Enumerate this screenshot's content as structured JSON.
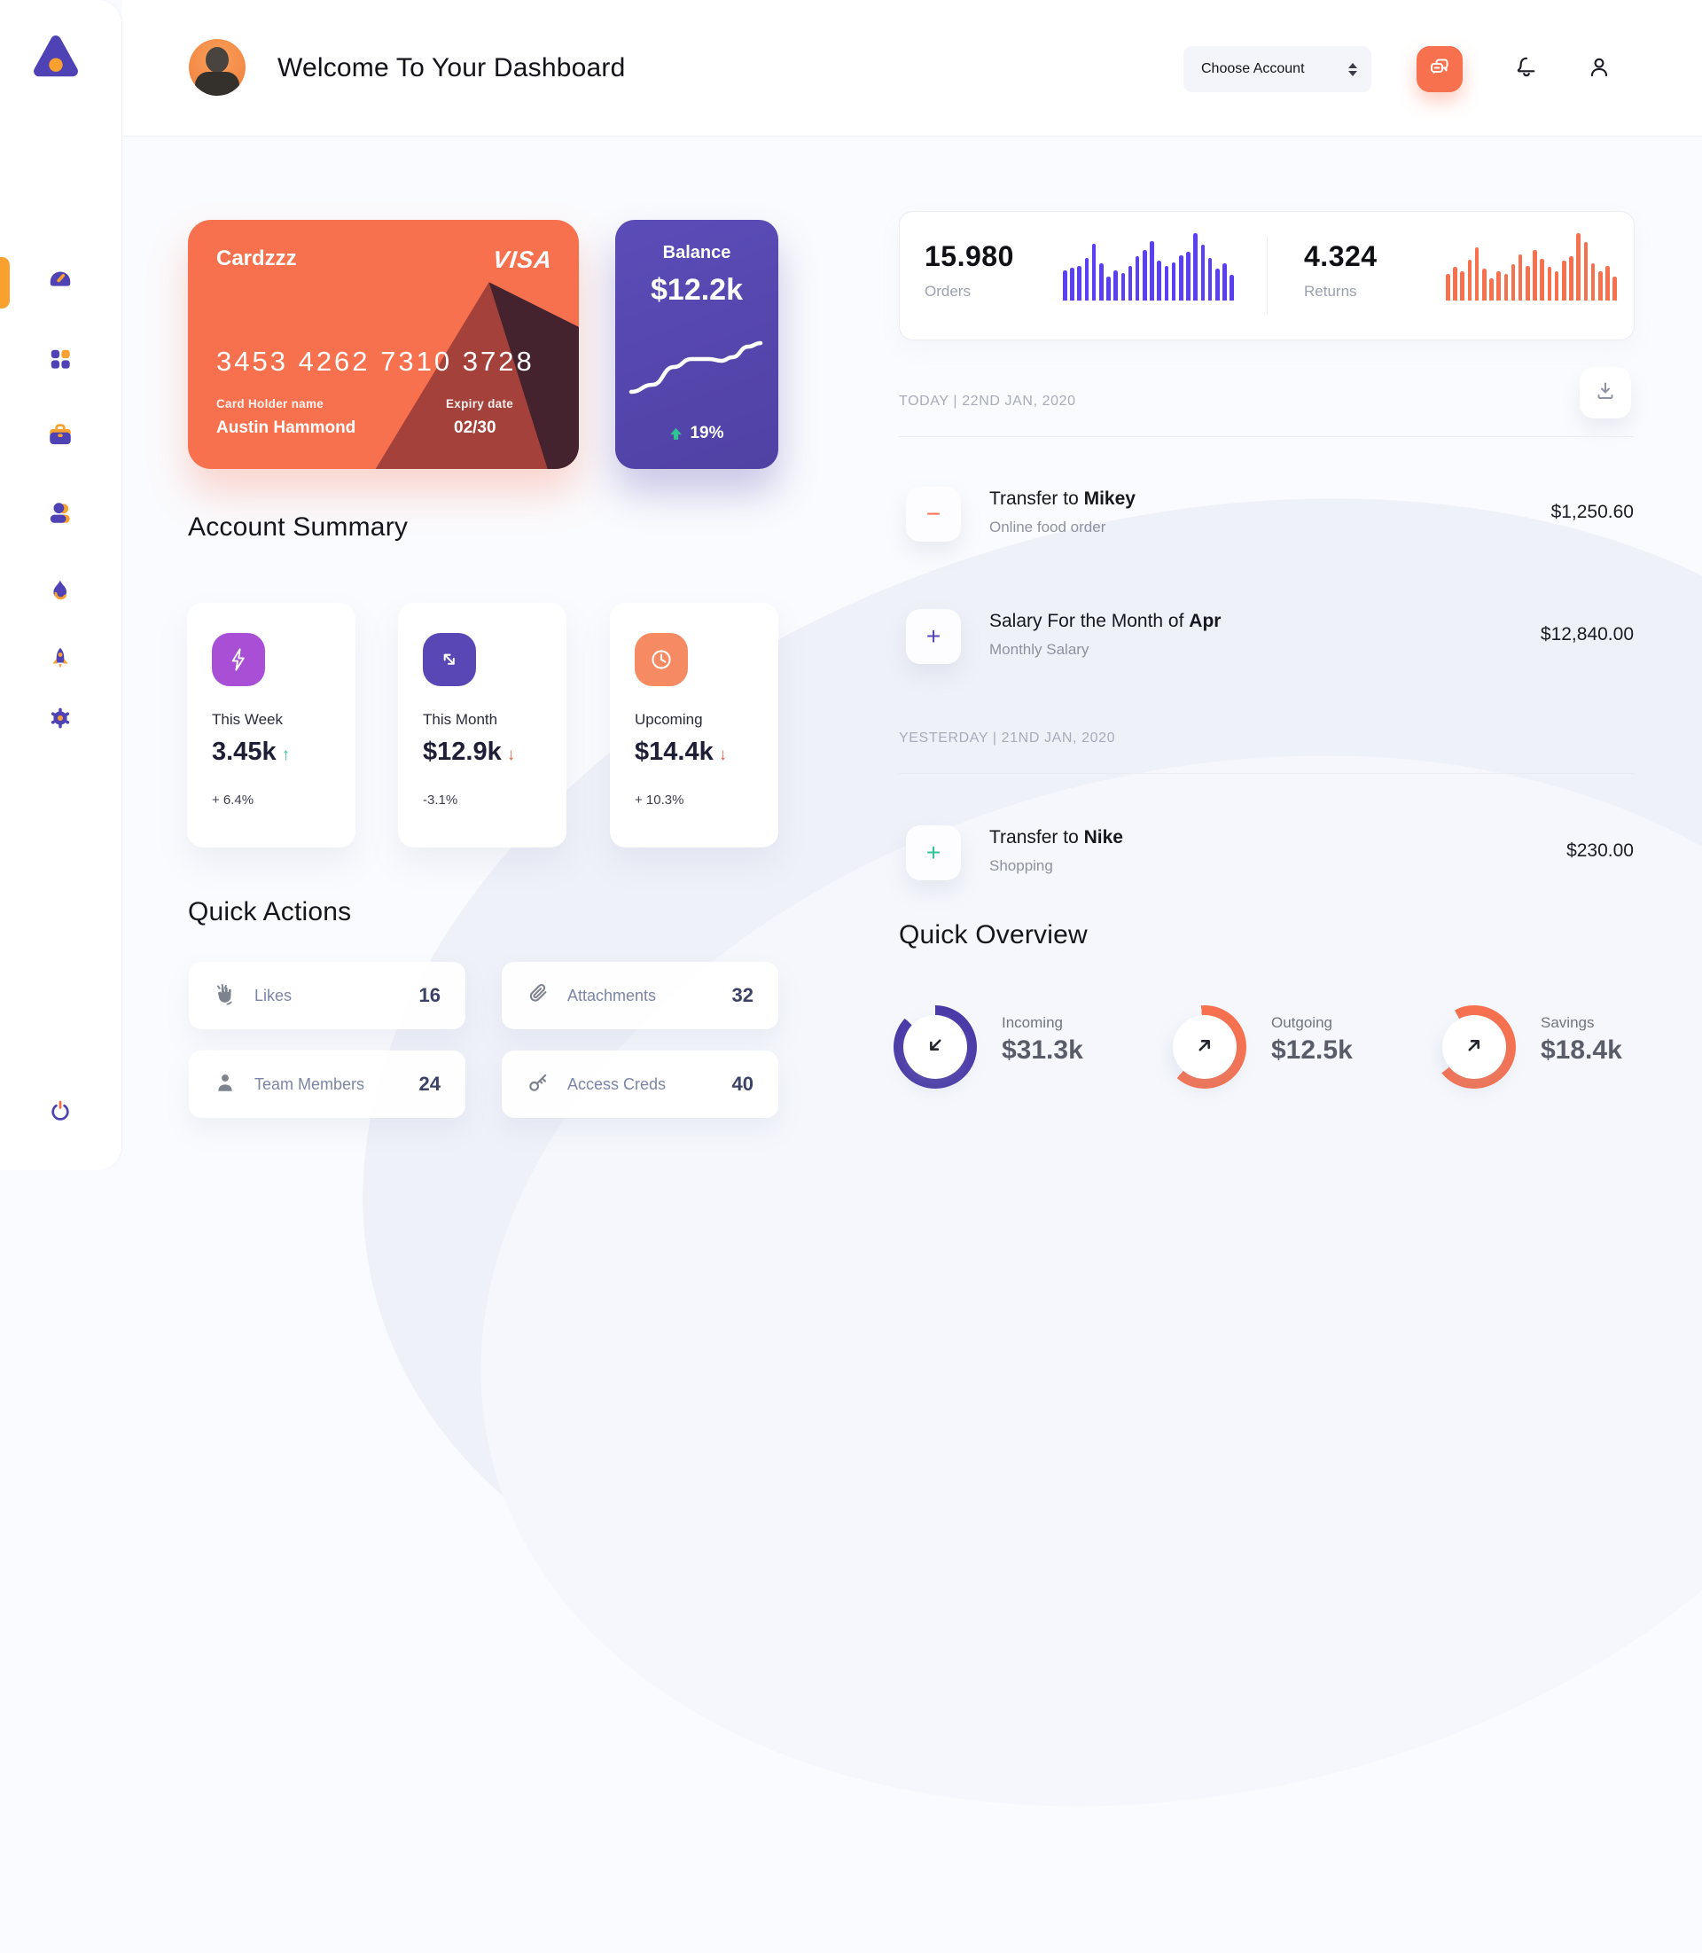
{
  "theme": {
    "orange": "#F8714E",
    "purple": "#5646B8",
    "violet_bars": "#5B3FF5",
    "green": "#2EC592",
    "red": "#E8604C",
    "amber": "#F9A12F",
    "summary_icon_colors": [
      "#A94FD6",
      "#5847B5",
      "#F58A63"
    ]
  },
  "sidebar": {
    "logo_icon": "triangle-logo",
    "items": [
      {
        "icon": "dashboard-gauge-icon",
        "active": true
      },
      {
        "icon": "apps-grid-icon",
        "active": false
      },
      {
        "icon": "briefcase-icon",
        "active": false
      },
      {
        "icon": "team-icon",
        "active": false
      },
      {
        "icon": "flame-icon",
        "active": false
      },
      {
        "icon": "rocket-icon",
        "active": false
      },
      {
        "icon": "settings-gear-icon",
        "active": false
      },
      {
        "icon": "power-icon",
        "active": false
      }
    ]
  },
  "header": {
    "title": "Welcome To Your Dashboard",
    "account_select_label": "Choose Account"
  },
  "credit_card": {
    "name": "Cardzzz",
    "brand": "VISA",
    "number": "3453 4262 7310 3728",
    "holder_label": "Card Holder name",
    "holder": "Austin Hammond",
    "expiry_label": "Expiry date",
    "expiry": "02/30"
  },
  "balance_card": {
    "label": "Balance",
    "value": "$12.2k",
    "change": "19%"
  },
  "account_summary": {
    "title": "Account Summary",
    "items": [
      {
        "icon": "lightning-icon",
        "icon_color": "#A94FD6",
        "label": "This Week",
        "value": "3.45k",
        "arrow": "↑",
        "arrow_color": "#2EC592",
        "change": "+ 6.4%"
      },
      {
        "icon": "trend-arrows-icon",
        "icon_color": "#5847B5",
        "label": "This Month",
        "value": "$12.9k",
        "arrow": "↓",
        "arrow_color": "#E8604C",
        "change": "-3.1%"
      },
      {
        "icon": "clock-icon",
        "icon_color": "#F58A63",
        "label": "Upcoming",
        "value": "$14.4k",
        "arrow": "↓",
        "arrow_color": "#E8604C",
        "change": "+ 10.3%"
      }
    ]
  },
  "quick_actions": {
    "title": "Quick Actions",
    "items": [
      {
        "icon": "clap-icon",
        "label": "Likes",
        "count": "16"
      },
      {
        "icon": "paperclip-icon",
        "label": "Attachments",
        "count": "32"
      },
      {
        "icon": "member-icon",
        "label": "Team Members",
        "count": "24"
      },
      {
        "icon": "key-icon",
        "label": "Access Creds",
        "count": "40"
      }
    ]
  },
  "stats": {
    "orders": {
      "value": "15.980",
      "label": "Orders"
    },
    "returns": {
      "value": "4.324",
      "label": "Returns"
    }
  },
  "transactions": {
    "groups": [
      {
        "date_label": "TODAY | 22ND JAN, 2020",
        "rows": [
          {
            "sign": "−",
            "sign_color": "#F8714E",
            "title_prefix": "Transfer to ",
            "title_bold": "Mikey",
            "subtitle": "Online food order",
            "amount": "$1,250.60"
          },
          {
            "sign": "+",
            "sign_color": "#5646B8",
            "title_prefix": "Salary For the Month of ",
            "title_bold": "Apr",
            "subtitle": "Monthly Salary",
            "amount": "$12,840.00"
          }
        ]
      },
      {
        "date_label": "YESTERDAY | 21ND JAN, 2020",
        "rows": [
          {
            "sign": "+",
            "sign_color": "#2EC592",
            "title_prefix": "Transfer to ",
            "title_bold": "Nike",
            "subtitle": "Shopping",
            "amount": "$230.00"
          }
        ]
      }
    ]
  },
  "quick_overview": {
    "title": "Quick Overview",
    "items": [
      {
        "label": "Incoming",
        "value": "$31.3k",
        "percent": 87,
        "start_deg": 0,
        "color": "#4A3AA8",
        "arrow": "down-left"
      },
      {
        "label": "Outgoing",
        "value": "$12.5k",
        "percent": 63,
        "start_deg": -5,
        "color": "#F8714E",
        "arrow": "up-right"
      },
      {
        "label": "Savings",
        "value": "$18.4k",
        "percent": 72,
        "start_deg": -28,
        "color": "#F8714E",
        "arrow": "up-right"
      }
    ]
  },
  "chart_data": [
    {
      "type": "bar",
      "name": "orders_sparkline",
      "color": "#5B3FF5",
      "values": [
        34,
        37,
        39,
        48,
        64,
        42,
        27,
        34,
        31,
        39,
        50,
        57,
        67,
        45,
        39,
        43,
        51,
        55,
        76,
        63,
        48,
        36,
        42,
        29
      ]
    },
    {
      "type": "bar",
      "name": "returns_sparkline",
      "color": "#F8714E",
      "values": [
        30,
        38,
        33,
        46,
        60,
        36,
        25,
        33,
        30,
        41,
        52,
        39,
        57,
        47,
        38,
        33,
        45,
        50,
        76,
        66,
        42,
        33,
        39,
        27
      ]
    },
    {
      "type": "line",
      "name": "balance_trend",
      "color": "#FFFFFF",
      "label": "Balance $12.2k up 19%",
      "points": [
        [
          4,
          66
        ],
        [
          28,
          58
        ],
        [
          52,
          38
        ],
        [
          72,
          29
        ],
        [
          92,
          29
        ],
        [
          106,
          31
        ],
        [
          118,
          27
        ],
        [
          136,
          15
        ],
        [
          150,
          11
        ]
      ]
    },
    {
      "type": "donut",
      "name": "quick_overview_rings",
      "values": [
        {
          "label": "Incoming",
          "percent": 87
        },
        {
          "label": "Outgoing",
          "percent": 63
        },
        {
          "label": "Savings",
          "percent": 72
        }
      ]
    }
  ]
}
